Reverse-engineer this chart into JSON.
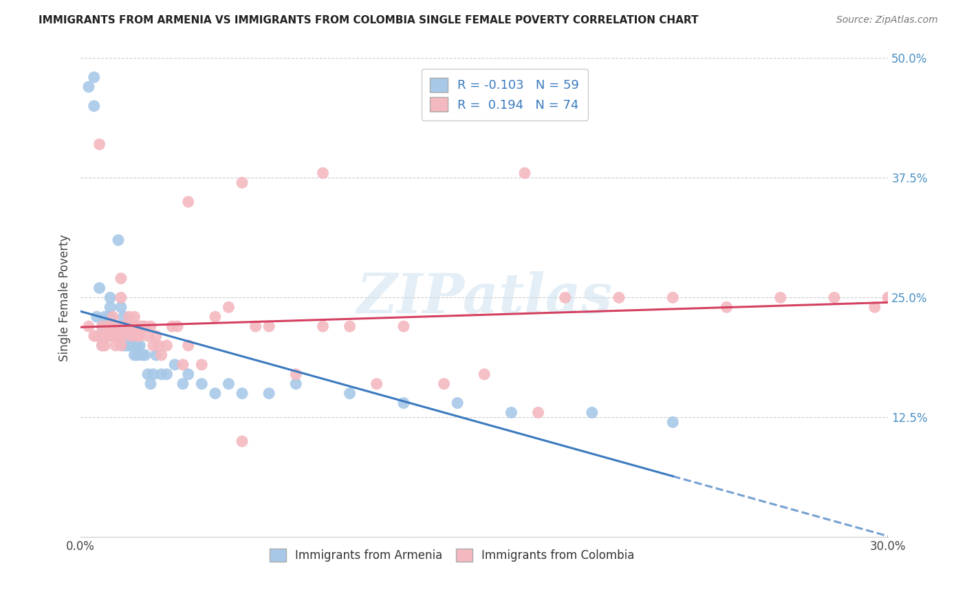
{
  "title": "IMMIGRANTS FROM ARMENIA VS IMMIGRANTS FROM COLOMBIA SINGLE FEMALE POVERTY CORRELATION CHART",
  "source": "Source: ZipAtlas.com",
  "ylabel": "Single Female Poverty",
  "xlim": [
    0.0,
    0.3
  ],
  "ylim": [
    0.0,
    0.5
  ],
  "armenia_color": "#a8c8e8",
  "colombia_color": "#f4b8c0",
  "trendline_armenia_color": "#3a7abf",
  "trendline_colombia_color": "#d44060",
  "R_armenia": -0.103,
  "N_armenia": 59,
  "R_colombia": 0.194,
  "N_colombia": 74,
  "legend_label_armenia": "R = -0.103   N = 59",
  "legend_label_colombia": "R =  0.194   N = 74",
  "legend_armenia": "Immigrants from Armenia",
  "legend_colombia": "Immigrants from Colombia",
  "watermark": "ZIPatlas",
  "armenia_x": [
    0.003,
    0.005,
    0.005,
    0.006,
    0.007,
    0.007,
    0.008,
    0.008,
    0.009,
    0.009,
    0.01,
    0.01,
    0.011,
    0.011,
    0.011,
    0.012,
    0.012,
    0.013,
    0.013,
    0.014,
    0.015,
    0.015,
    0.015,
    0.016,
    0.016,
    0.017,
    0.017,
    0.018,
    0.018,
    0.019,
    0.019,
    0.02,
    0.02,
    0.021,
    0.021,
    0.022,
    0.023,
    0.024,
    0.025,
    0.026,
    0.027,
    0.028,
    0.03,
    0.032,
    0.035,
    0.038,
    0.04,
    0.045,
    0.05,
    0.055,
    0.06,
    0.07,
    0.08,
    0.1,
    0.12,
    0.14,
    0.16,
    0.19,
    0.22
  ],
  "armenia_y": [
    0.47,
    0.48,
    0.45,
    0.23,
    0.26,
    0.21,
    0.22,
    0.2,
    0.23,
    0.22,
    0.22,
    0.21,
    0.24,
    0.23,
    0.25,
    0.22,
    0.21,
    0.22,
    0.21,
    0.31,
    0.24,
    0.22,
    0.21,
    0.23,
    0.2,
    0.21,
    0.2,
    0.21,
    0.2,
    0.2,
    0.2,
    0.22,
    0.19,
    0.2,
    0.19,
    0.2,
    0.19,
    0.19,
    0.17,
    0.16,
    0.17,
    0.19,
    0.17,
    0.17,
    0.18,
    0.16,
    0.17,
    0.16,
    0.15,
    0.16,
    0.15,
    0.15,
    0.16,
    0.15,
    0.14,
    0.14,
    0.13,
    0.13,
    0.12
  ],
  "colombia_x": [
    0.003,
    0.005,
    0.006,
    0.007,
    0.008,
    0.008,
    0.009,
    0.009,
    0.01,
    0.01,
    0.011,
    0.011,
    0.012,
    0.012,
    0.013,
    0.013,
    0.014,
    0.014,
    0.015,
    0.015,
    0.015,
    0.016,
    0.016,
    0.017,
    0.017,
    0.018,
    0.018,
    0.019,
    0.019,
    0.02,
    0.02,
    0.021,
    0.022,
    0.022,
    0.023,
    0.024,
    0.025,
    0.026,
    0.027,
    0.028,
    0.029,
    0.03,
    0.032,
    0.034,
    0.036,
    0.038,
    0.04,
    0.045,
    0.05,
    0.055,
    0.06,
    0.065,
    0.07,
    0.08,
    0.09,
    0.1,
    0.11,
    0.12,
    0.135,
    0.15,
    0.165,
    0.18,
    0.2,
    0.22,
    0.24,
    0.26,
    0.28,
    0.295,
    0.3,
    0.3,
    0.04,
    0.06,
    0.09,
    0.17
  ],
  "colombia_y": [
    0.22,
    0.21,
    0.21,
    0.41,
    0.22,
    0.2,
    0.21,
    0.2,
    0.22,
    0.21,
    0.22,
    0.21,
    0.23,
    0.21,
    0.22,
    0.2,
    0.22,
    0.21,
    0.25,
    0.27,
    0.2,
    0.22,
    0.21,
    0.22,
    0.22,
    0.23,
    0.22,
    0.22,
    0.21,
    0.23,
    0.22,
    0.21,
    0.22,
    0.21,
    0.22,
    0.22,
    0.21,
    0.22,
    0.2,
    0.21,
    0.2,
    0.19,
    0.2,
    0.22,
    0.22,
    0.18,
    0.2,
    0.18,
    0.23,
    0.24,
    0.1,
    0.22,
    0.22,
    0.17,
    0.38,
    0.22,
    0.16,
    0.22,
    0.16,
    0.17,
    0.38,
    0.25,
    0.25,
    0.25,
    0.24,
    0.25,
    0.25,
    0.24,
    0.25,
    0.25,
    0.35,
    0.37,
    0.22,
    0.13
  ]
}
